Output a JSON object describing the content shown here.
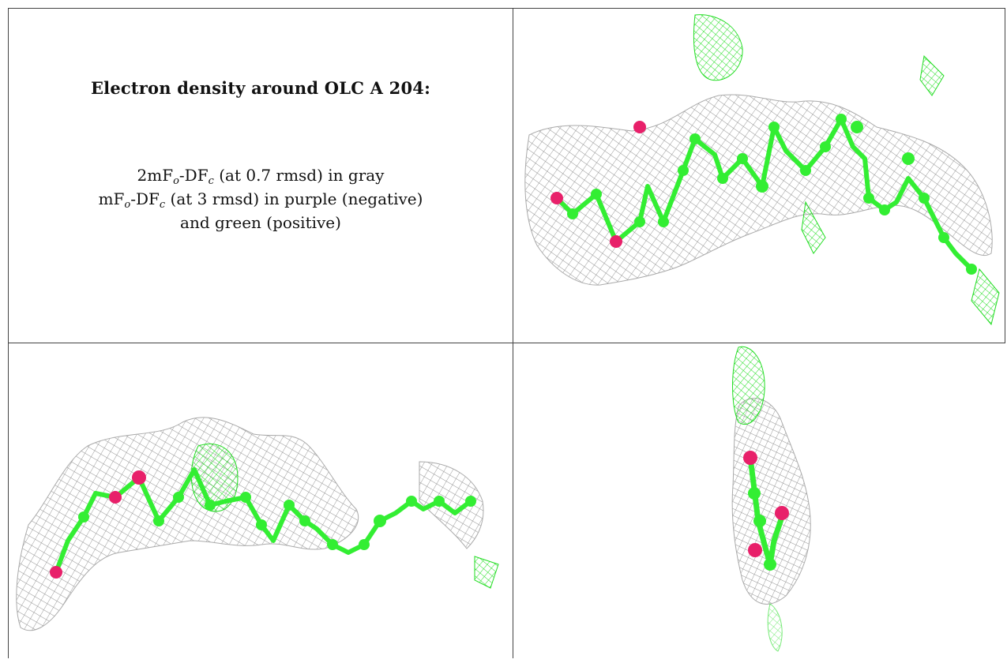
{
  "title": "Electron density around OLC A 204:",
  "legend": {
    "line1_prefix": "2mF",
    "line1_sub1": "o",
    "line1_mid": "-DF",
    "line1_sub2": "c",
    "line1_suffix": " (at 0.7 rmsd) in gray",
    "line2_prefix": "mF",
    "line2_sub1": "o",
    "line2_mid": "-DF",
    "line2_sub2": "c",
    "line2_suffix": " (at 3 rmsd) in purple (negative)",
    "line3": "and green (positive)"
  },
  "colors": {
    "mesh_gray": "#9a9a9a",
    "carbon_green": "#33ee33",
    "oxygen_pink": "#e8206a",
    "diff_green": "#22dd22",
    "border": "#444444"
  },
  "panels": {
    "top_right": "ligand-view-side",
    "bottom_left": "ligand-view-front",
    "bottom_right": "ligand-view-end-on"
  }
}
